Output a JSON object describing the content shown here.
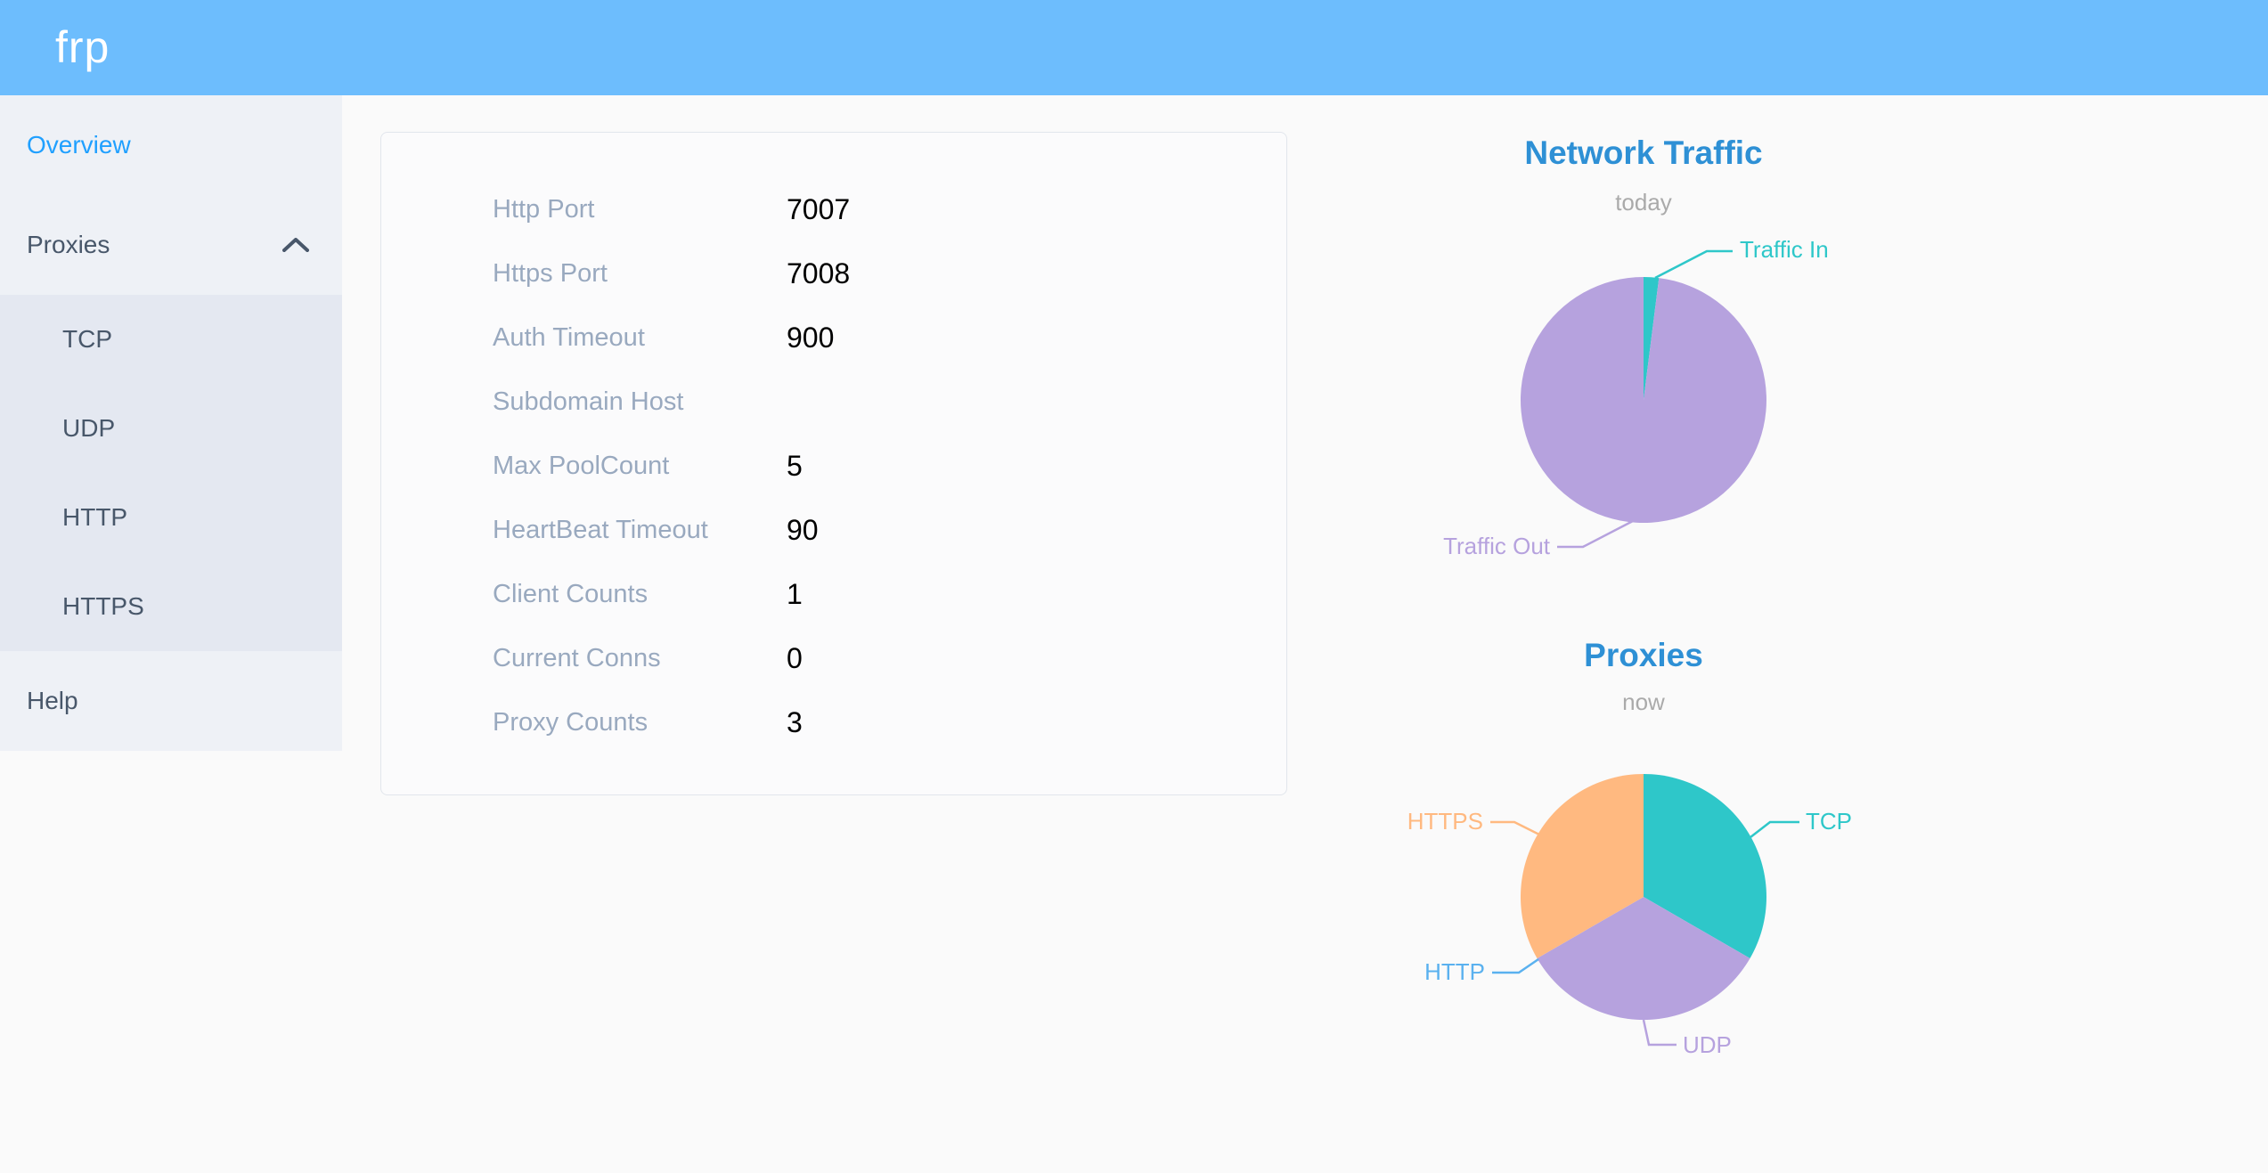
{
  "app": {
    "logo_text": "frp",
    "header_color": "#6dbdfd"
  },
  "sidebar": {
    "overview_label": "Overview",
    "proxies_label": "Proxies",
    "proxies_expanded": true,
    "proxies_children": [
      {
        "label": "TCP"
      },
      {
        "label": "UDP"
      },
      {
        "label": "HTTP"
      },
      {
        "label": "HTTPS"
      }
    ],
    "help_label": "Help",
    "active_item": "Overview",
    "active_color": "#20a0ff"
  },
  "server_info": {
    "rows": [
      {
        "label": "Http Port",
        "value": "7007"
      },
      {
        "label": "Https Port",
        "value": "7008"
      },
      {
        "label": "Auth Timeout",
        "value": "900"
      },
      {
        "label": "Subdomain Host",
        "value": ""
      },
      {
        "label": "Max PoolCount",
        "value": "5"
      },
      {
        "label": "HeartBeat Timeout",
        "value": "90"
      },
      {
        "label": "Client Counts",
        "value": "1"
      },
      {
        "label": "Current Conns",
        "value": "0"
      },
      {
        "label": "Proxy Counts",
        "value": "3"
      }
    ]
  },
  "chart_data": [
    {
      "type": "pie",
      "title": "Network Traffic",
      "subtitle": "today",
      "unit": "% (estimated from slice angles)",
      "legend_position": "none",
      "series": [
        {
          "name": "Traffic In",
          "value": 2,
          "color": "#2ec7c9"
        },
        {
          "name": "Traffic Out",
          "value": 98,
          "color": "#b6a2de"
        }
      ]
    },
    {
      "type": "pie",
      "title": "Proxies",
      "subtitle": "now",
      "unit": "proxy count",
      "legend_position": "none",
      "series": [
        {
          "name": "TCP",
          "value": 1,
          "color": "#2ec7c9"
        },
        {
          "name": "UDP",
          "value": 1,
          "color": "#b6a2de"
        },
        {
          "name": "HTTP",
          "value": 0,
          "color": "#5ab1ef"
        },
        {
          "name": "HTTPS",
          "value": 1,
          "color": "#ffb980"
        }
      ]
    }
  ]
}
